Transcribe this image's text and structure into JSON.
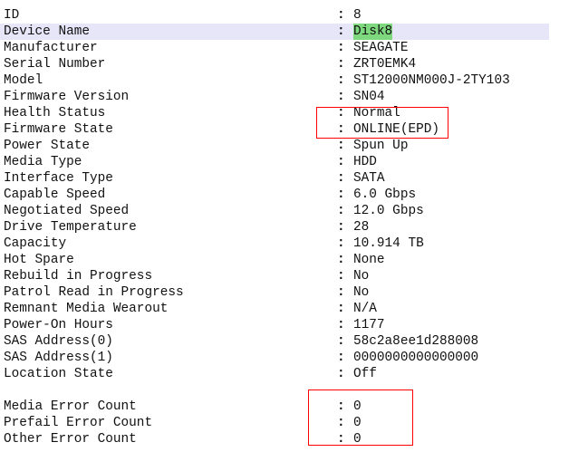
{
  "properties": [
    {
      "label": "ID",
      "value": "8"
    },
    {
      "label": "Device Name",
      "value": "Disk8"
    },
    {
      "label": "Manufacturer",
      "value": "SEAGATE"
    },
    {
      "label": "Serial Number",
      "value": "ZRT0EMK4"
    },
    {
      "label": "Model",
      "value": "ST12000NM000J-2TY103"
    },
    {
      "label": "Firmware Version",
      "value": "SN04"
    },
    {
      "label": "Health Status",
      "value": "Normal"
    },
    {
      "label": "Firmware State",
      "value": "ONLINE(EPD)"
    },
    {
      "label": "Power State",
      "value": "Spun Up"
    },
    {
      "label": "Media Type",
      "value": "HDD"
    },
    {
      "label": "Interface Type",
      "value": "SATA"
    },
    {
      "label": "Capable Speed",
      "value": "6.0 Gbps"
    },
    {
      "label": "Negotiated Speed",
      "value": "12.0 Gbps"
    },
    {
      "label": "Drive Temperature",
      "value": "28"
    },
    {
      "label": "Capacity",
      "value": "10.914 TB"
    },
    {
      "label": "Hot Spare",
      "value": "None"
    },
    {
      "label": "Rebuild in Progress",
      "value": "No"
    },
    {
      "label": "Patrol Read in Progress",
      "value": "No"
    },
    {
      "label": "Remnant Media Wearout",
      "value": "N/A"
    },
    {
      "label": "Power-On Hours",
      "value": "1177"
    },
    {
      "label": "SAS Address(0)",
      "value": "58c2a8ee1d288008"
    },
    {
      "label": "SAS Address(1)",
      "value": "0000000000000000"
    },
    {
      "label": "Location State",
      "value": "Off"
    }
  ],
  "errors": [
    {
      "label": "Media Error Count",
      "value": "0"
    },
    {
      "label": "Prefail Error Count",
      "value": "0"
    },
    {
      "label": "Other Error Count",
      "value": "0"
    }
  ],
  "separator": ":",
  "colors": {
    "selected_row": "#e6e6f8",
    "highlight": "#7ed87e",
    "annotation_box": "#ff0000"
  }
}
